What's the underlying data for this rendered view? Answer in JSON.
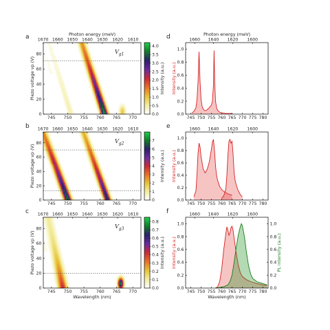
{
  "photon_label": "Photon energy (meV)",
  "wavelength_label": "Wavelength (nm)",
  "piezo_label": "Piezo voltage vp (V)",
  "intensity_label": "Intensity (a.u.)",
  "pl_label": "PL intensity (a.u.)",
  "colormap": [
    "#ffffff",
    "#f3eda0",
    "#e8c43a",
    "#e8722a",
    "#cc2a35",
    "#6a2aa0",
    "#2c1f6a",
    "#0f7a2a",
    "#1fd04a"
  ],
  "chart_data": [
    {
      "panel": "a",
      "type": "heatmap",
      "gate": "V",
      "gate_sub": "g1",
      "x_ticks": [
        "745",
        "750",
        "755",
        "760",
        "765",
        "770"
      ],
      "top_ticks": [
        "1670",
        "1660",
        "1650",
        "1640",
        "1630",
        "1620",
        "1610"
      ],
      "y_ticks": [
        "0",
        "20",
        "40",
        "60",
        "80"
      ],
      "ylim": [
        0,
        95
      ],
      "xlim": [
        742.5,
        772.5
      ],
      "dashed_y": [
        71
      ],
      "colorbar_ticks": [
        "0.0",
        "0.5",
        "1.0",
        "1.5",
        "2.0",
        "2.5",
        "3.0",
        "3.5",
        "4.0"
      ],
      "colorbar_max": 4.2
    },
    {
      "panel": "b",
      "type": "heatmap",
      "gate": "V",
      "gate_sub": "g2",
      "x_ticks": [
        "745",
        "750",
        "755",
        "760",
        "765",
        "770"
      ],
      "top_ticks": [
        "1670",
        "1660",
        "1650",
        "1640",
        "1630",
        "1620",
        "1610"
      ],
      "y_ticks": [
        "0",
        "20",
        "40",
        "60",
        "80"
      ],
      "ylim": [
        0,
        95
      ],
      "xlim": [
        742.5,
        772.5
      ],
      "dashed_y": [
        70,
        13
      ],
      "colorbar_ticks": [
        "0",
        "1",
        "2",
        "3",
        "4",
        "5",
        "6",
        "7"
      ],
      "colorbar_max": 8
    },
    {
      "panel": "c",
      "type": "heatmap",
      "gate": "V",
      "gate_sub": "g3",
      "x_ticks": [
        "745",
        "750",
        "755",
        "760",
        "765",
        "770"
      ],
      "top_ticks": [
        "1670",
        "1660",
        "1650",
        "1640",
        "1630",
        "1620",
        "1610"
      ],
      "y_ticks": [
        "0",
        "20",
        "40",
        "60",
        "80"
      ],
      "ylim": [
        0,
        95
      ],
      "xlim": [
        742.5,
        772.5
      ],
      "dashed_y": [
        20
      ],
      "colorbar_ticks": [
        "0.0",
        "0.1",
        "0.2",
        "0.3",
        "0.4",
        "0.5",
        "0.6",
        "0.7",
        "0.8"
      ],
      "colorbar_max": 0.85
    },
    {
      "panel": "d",
      "type": "area",
      "x_ticks": [
        "745",
        "750",
        "755",
        "760",
        "765",
        "770",
        "775",
        "780"
      ],
      "top_ticks": [
        "1660",
        "1640",
        "1620",
        "1600"
      ],
      "y_ticks": [
        "0.0",
        "0.2",
        "0.4",
        "0.6",
        "0.8",
        "1.0"
      ],
      "xlim": [
        742.5,
        782.5
      ],
      "ylim": [
        0,
        1.1
      ],
      "x": [
        745.5,
        746.5,
        747.5,
        748.0,
        748.5,
        749.0,
        749.5,
        750.0,
        750.5,
        751.0,
        751.5,
        752.0,
        753.0,
        754.0,
        755.0,
        755.5,
        756.0,
        756.3,
        756.6,
        757.0,
        757.5,
        758.0,
        759.0,
        760.0,
        762.0,
        765.0
      ],
      "y": [
        0.02,
        0.04,
        0.1,
        0.22,
        0.48,
        0.96,
        0.5,
        0.22,
        0.12,
        0.08,
        0.06,
        0.05,
        0.07,
        0.1,
        0.14,
        0.2,
        0.45,
        0.98,
        0.5,
        0.2,
        0.1,
        0.06,
        0.03,
        0.02,
        0.01,
        0.01
      ]
    },
    {
      "panel": "e",
      "type": "area",
      "x_ticks": [
        "745",
        "750",
        "755",
        "760",
        "765",
        "770",
        "775",
        "780"
      ],
      "top_ticks": [
        "1660",
        "1640",
        "1620",
        "1600"
      ],
      "y_ticks": [
        "0.0",
        "0.2",
        "0.4",
        "0.6",
        "0.8",
        "1.0"
      ],
      "xlim": [
        742.5,
        782.5
      ],
      "ylim": [
        0,
        1.1
      ],
      "series": [
        {
          "x": [
            746.5,
            747.5,
            748.0,
            748.5,
            749.0,
            749.5,
            750.0,
            751.0,
            752.0,
            753.0,
            754.0,
            755.0,
            755.5,
            756.0,
            756.5,
            757.0,
            757.5,
            758.0,
            759.0,
            760.0,
            761.0,
            762.0,
            763.0,
            764.0,
            765.0
          ],
          "y": [
            0.05,
            0.15,
            0.4,
            0.75,
            0.92,
            0.86,
            0.7,
            0.5,
            0.44,
            0.5,
            0.62,
            0.82,
            0.94,
            0.98,
            0.8,
            0.55,
            0.4,
            0.32,
            0.22,
            0.17,
            0.14,
            0.12,
            0.1,
            0.09,
            0.08
          ]
        },
        {
          "x": [
            760.0,
            761.0,
            762.0,
            762.5,
            763.0,
            763.5,
            764.0,
            764.5,
            765.0,
            765.5,
            766.0,
            766.5,
            767.0,
            768.0,
            769.0,
            770.0
          ],
          "y": [
            0.03,
            0.07,
            0.18,
            0.4,
            0.72,
            0.95,
            0.98,
            0.92,
            0.95,
            0.75,
            0.45,
            0.32,
            0.25,
            0.15,
            0.09,
            0.05
          ]
        }
      ]
    },
    {
      "panel": "f",
      "type": "area",
      "x_ticks": [
        "745",
        "750",
        "755",
        "760",
        "765",
        "770",
        "775",
        "780"
      ],
      "top_ticks": [
        "1660",
        "1640",
        "1620",
        "1600"
      ],
      "y_ticks": [
        "0.0",
        "0.2",
        "0.4",
        "0.6",
        "0.8",
        "1.0"
      ],
      "right_ticks": [
        "0.0",
        "0.2",
        "0.4",
        "0.6",
        "0.8",
        "1.0"
      ],
      "xlim": [
        742.5,
        782.5
      ],
      "ylim": [
        0,
        1.1
      ],
      "series": [
        {
          "name": "absorption",
          "x": [
            757.0,
            758.0,
            759.0,
            760.0,
            761.0,
            762.0,
            762.5,
            763.0,
            763.5,
            764.0,
            764.5,
            765.0,
            765.5,
            766.0,
            767.0,
            768.0,
            769.0,
            770.0,
            772.0,
            774.0,
            777.0,
            780.0,
            782.0
          ],
          "y": [
            0.0,
            0.02,
            0.1,
            0.3,
            0.6,
            0.85,
            0.95,
            0.9,
            0.82,
            0.86,
            0.94,
            0.96,
            0.9,
            0.78,
            0.55,
            0.36,
            0.24,
            0.18,
            0.13,
            0.1,
            0.07,
            0.05,
            0.04
          ]
        },
        {
          "name": "PL",
          "x": [
            757.0,
            759.0,
            761.0,
            763.0,
            764.0,
            765.0,
            766.0,
            767.0,
            768.0,
            769.0,
            769.5,
            770.0,
            771.0,
            772.0,
            773.0,
            774.0,
            775.0,
            777.0,
            779.0,
            781.0,
            782.0
          ],
          "y": [
            0.0,
            0.01,
            0.02,
            0.05,
            0.1,
            0.2,
            0.4,
            0.62,
            0.82,
            0.95,
            1.0,
            0.97,
            0.8,
            0.55,
            0.35,
            0.22,
            0.15,
            0.1,
            0.08,
            0.06,
            0.05
          ]
        }
      ]
    }
  ]
}
